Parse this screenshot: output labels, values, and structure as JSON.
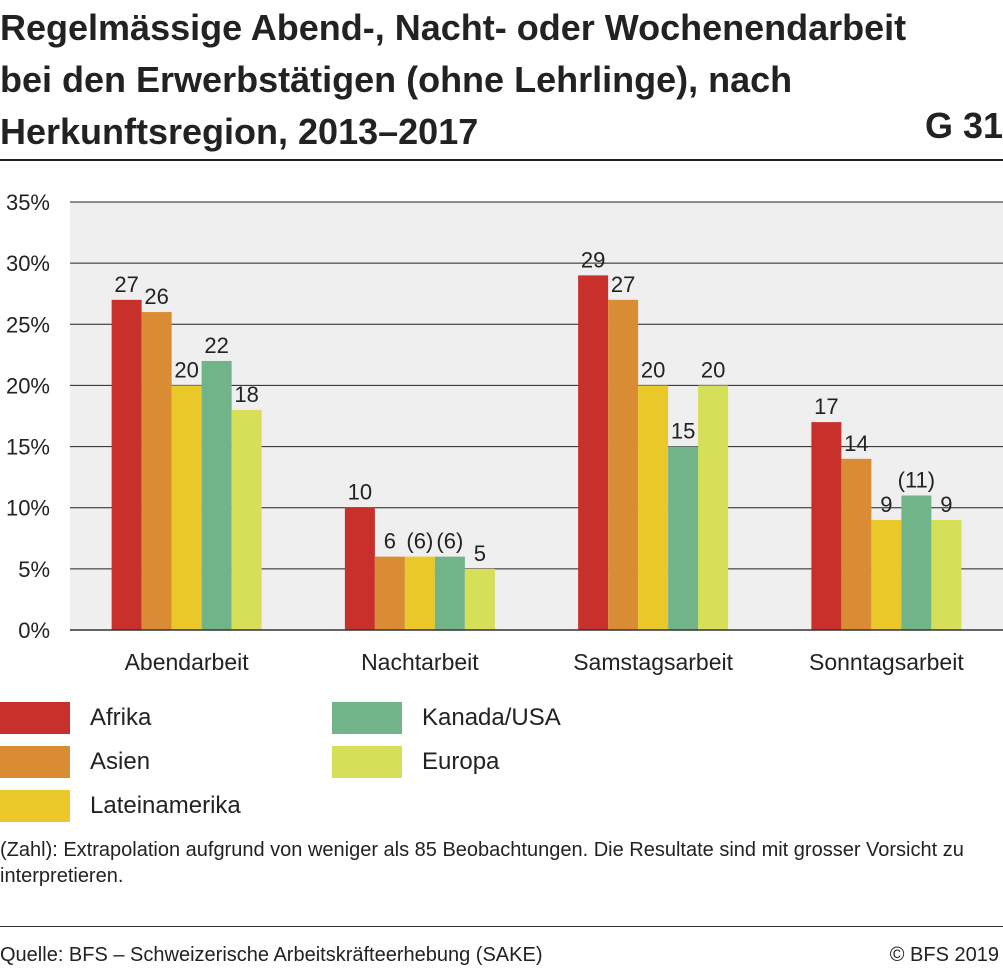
{
  "header": {
    "title": "Regelmässige Abend-, Nacht- oder Wochenendarbeit bei den Erwerbstätigen (ohne Lehrlinge), nach Herkunftsregion, 2013–2017",
    "code": "G 31"
  },
  "chart_data": {
    "type": "bar",
    "categories": [
      "Abendarbeit",
      "Nachtarbeit",
      "Samstagsarbeit",
      "Sonntagsarbeit"
    ],
    "series": [
      {
        "name": "Afrika",
        "color": "#c8302c",
        "values": [
          27,
          10,
          29,
          17
        ],
        "labels": [
          "27",
          "10",
          "29",
          "17"
        ]
      },
      {
        "name": "Asien",
        "color": "#d98c34",
        "values": [
          26,
          6,
          27,
          14
        ],
        "labels": [
          "26",
          "6",
          "27",
          "14"
        ]
      },
      {
        "name": "Lateinamerika",
        "color": "#eac82a",
        "values": [
          20,
          6,
          20,
          9
        ],
        "labels": [
          "20",
          "(6)",
          "20",
          "9"
        ]
      },
      {
        "name": "Kanada/USA",
        "color": "#72b48a",
        "values": [
          22,
          6,
          15,
          11
        ],
        "labels": [
          "22",
          "(6)",
          "15",
          "(11)"
        ]
      },
      {
        "name": "Europa",
        "color": "#d6df58",
        "values": [
          18,
          5,
          20,
          9
        ],
        "labels": [
          "18",
          "5",
          "20",
          "9"
        ]
      }
    ],
    "yticks": [
      "0%",
      "5%",
      "10%",
      "15%",
      "20%",
      "25%",
      "30%",
      "35%"
    ],
    "ylim": [
      0,
      35
    ],
    "grid": true,
    "legend_position": "bottom"
  },
  "legend": {
    "items": [
      {
        "label": "Afrika",
        "color": "#c8302c"
      },
      {
        "label": "Asien",
        "color": "#d98c34"
      },
      {
        "label": "Lateinamerika",
        "color": "#eac82a"
      },
      {
        "label": "Kanada/USA",
        "color": "#72b48a"
      },
      {
        "label": "Europa",
        "color": "#d6df58"
      }
    ]
  },
  "footnote": "(Zahl): Extrapolation aufgrund von weniger als 85 Beobachtungen. Die Resultate sind mit grosser Vorsicht zu interpretieren.",
  "footer": {
    "source": "Quelle: BFS – Schweizerische Arbeitskräfteerhebung (SAKE)",
    "copyright": "© BFS 2019"
  }
}
